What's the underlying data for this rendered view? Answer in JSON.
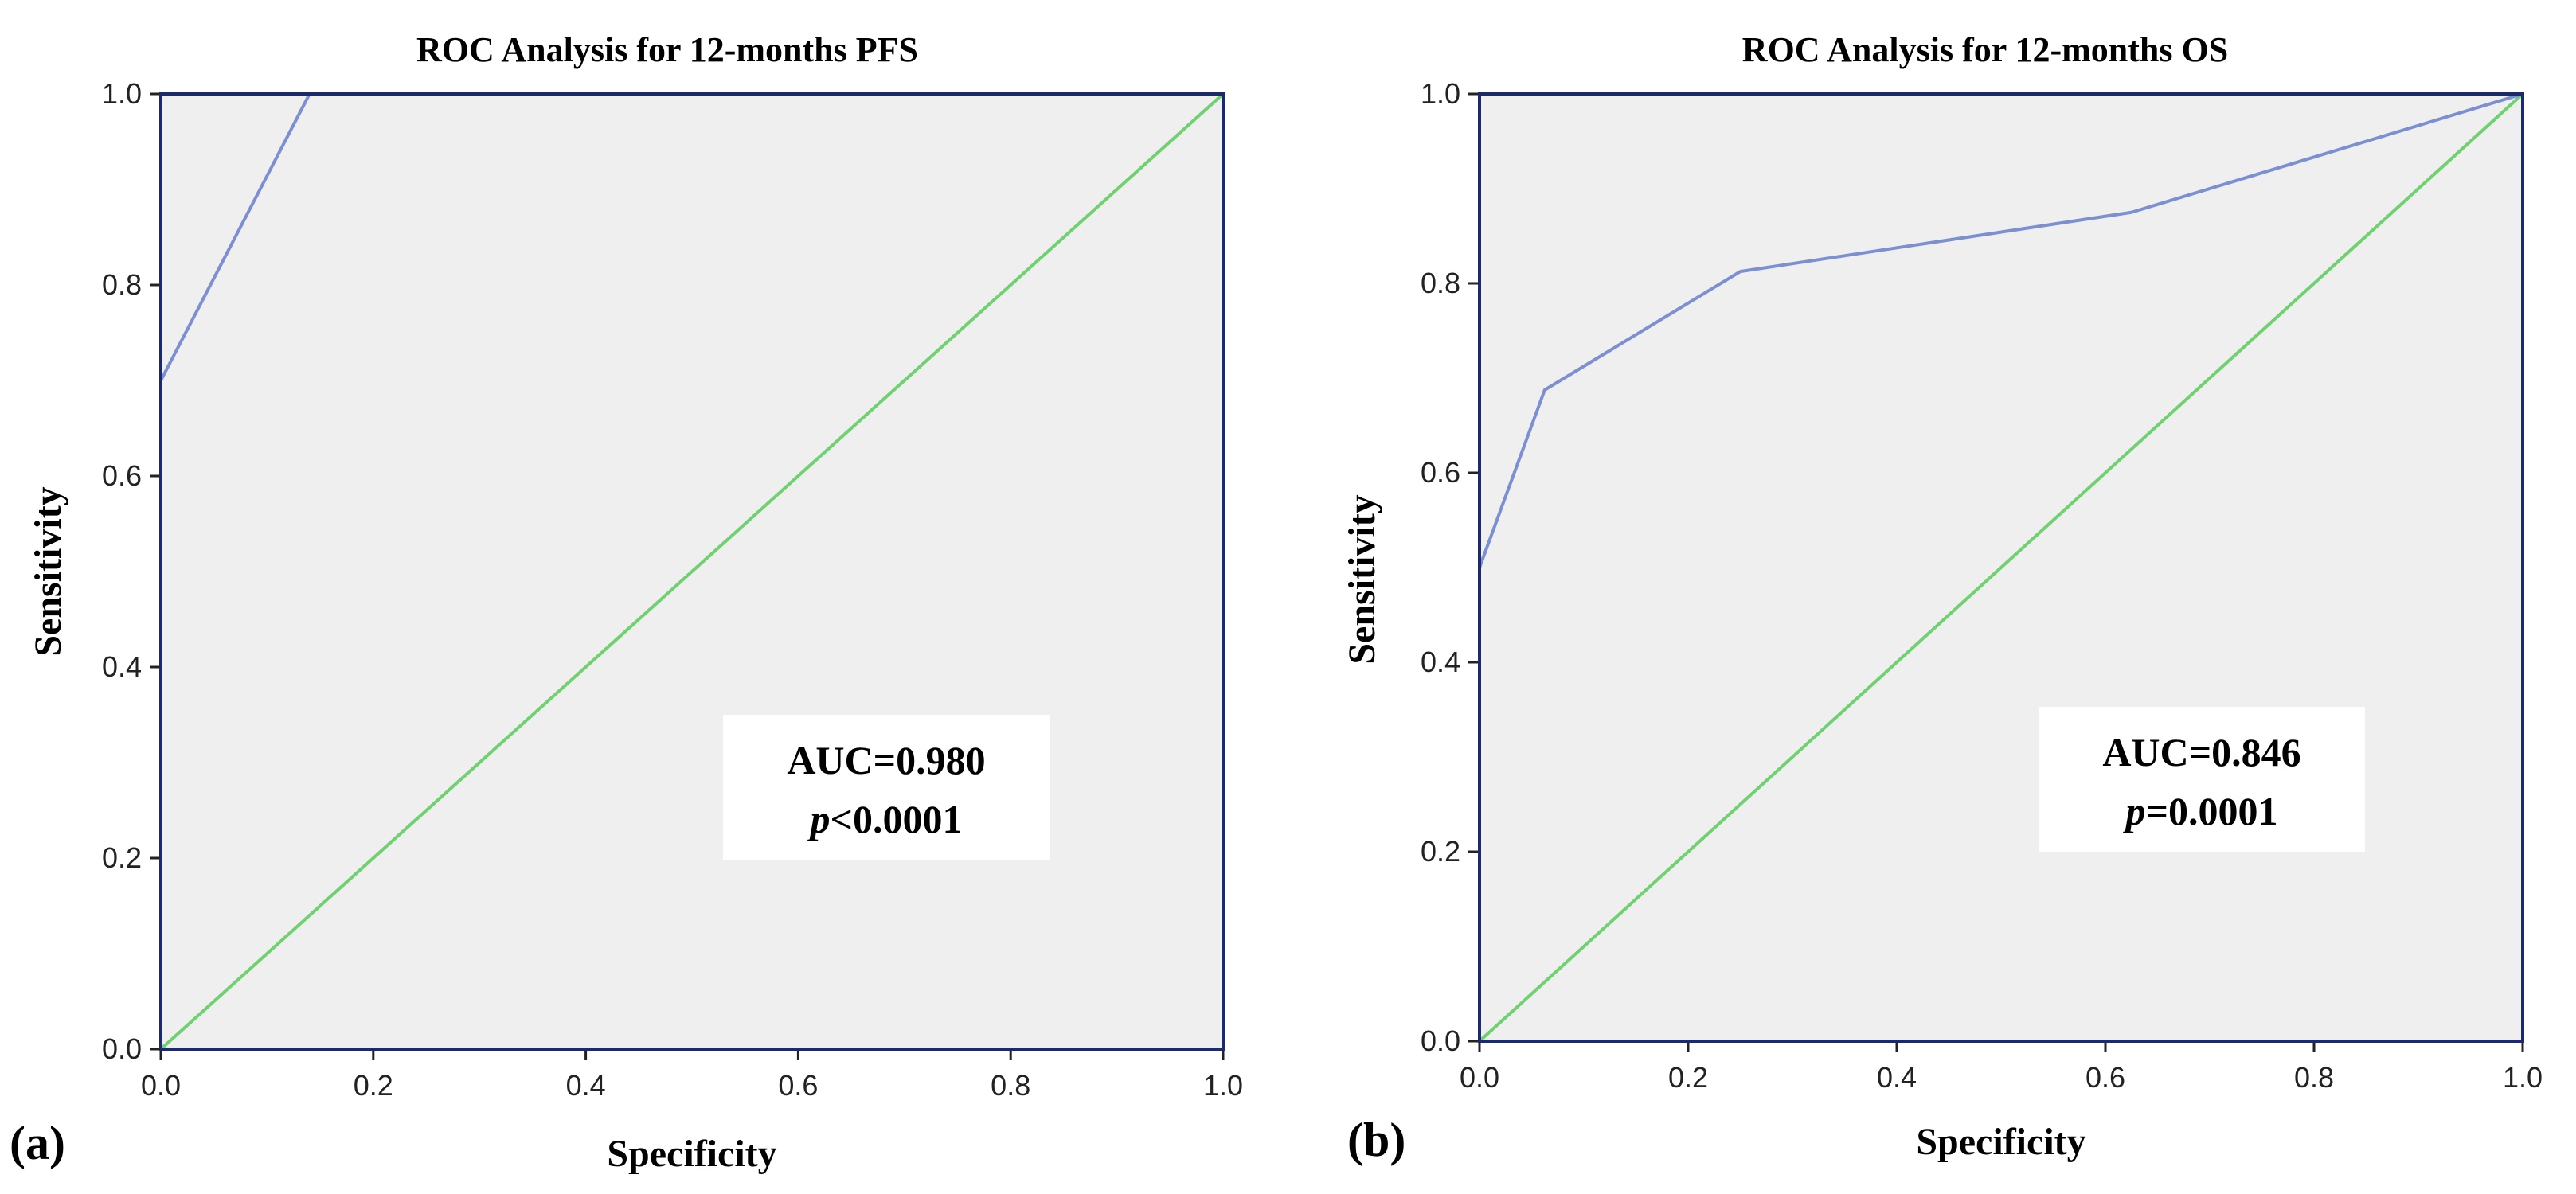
{
  "chart_data": [
    {
      "panel_label": "(a)",
      "type": "line",
      "title": "ROC Analysis for 12-months PFS",
      "xlabel": "Specificity",
      "ylabel": "Sensitivity",
      "xlim": [
        0,
        1
      ],
      "ylim": [
        0,
        1
      ],
      "x_ticks": [
        "0.0",
        "0.2",
        "0.4",
        "0.6",
        "0.8",
        "1.0"
      ],
      "y_ticks": [
        "0.0",
        "0.2",
        "0.4",
        "0.6",
        "0.8",
        "1.0"
      ],
      "grid": false,
      "series": [
        {
          "name": "ROC curve",
          "color": "#7b8fd1",
          "x": [
            0,
            0,
            0.14,
            1.0
          ],
          "y": [
            0,
            0.7,
            1.0,
            1.0
          ]
        },
        {
          "name": "Reference line",
          "color": "#6fd16f",
          "x": [
            0,
            1
          ],
          "y": [
            0,
            1
          ]
        }
      ],
      "annotation": {
        "auc": "AUC=0.980",
        "p_symbol": "p",
        "p_value": "<0.0001",
        "position": "lower-right"
      }
    },
    {
      "panel_label": "(b)",
      "type": "line",
      "title": "ROC Analysis for 12-months OS",
      "xlabel": "Specificity",
      "ylabel": "Sensitivity",
      "xlim": [
        0,
        1
      ],
      "ylim": [
        0,
        1
      ],
      "x_ticks": [
        "0.0",
        "0.2",
        "0.4",
        "0.6",
        "0.8",
        "1.0"
      ],
      "y_ticks": [
        "0.0",
        "0.2",
        "0.4",
        "0.6",
        "0.8",
        "1.0"
      ],
      "grid": false,
      "series": [
        {
          "name": "ROC curve",
          "color": "#7b8fd1",
          "x": [
            0,
            0,
            0.0625,
            0.25,
            0.625,
            1.0
          ],
          "y": [
            0,
            0.5,
            0.6875,
            0.8125,
            0.875,
            1.0
          ]
        },
        {
          "name": "Reference line",
          "color": "#6fd16f",
          "x": [
            0,
            1
          ],
          "y": [
            0,
            1
          ]
        }
      ],
      "annotation": {
        "auc": "AUC=0.846",
        "p_symbol": "p",
        "p_value": "=0.0001",
        "position": "lower-right"
      }
    }
  ],
  "colors": {
    "plot_background": "#efefef",
    "frame": "#1c2a6b",
    "roc_curve": "#7b8fd1",
    "reference_line": "#6fd16f"
  }
}
